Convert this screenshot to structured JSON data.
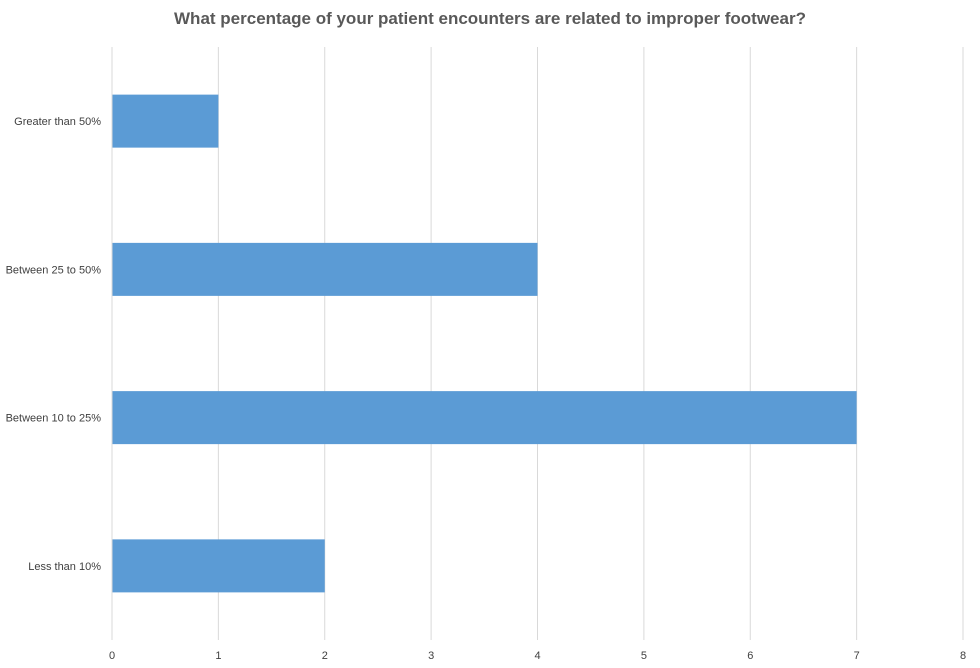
{
  "chart_data": {
    "type": "bar",
    "orientation": "horizontal",
    "title": "What percentage of your patient encounters are related to improper footwear?",
    "categories": [
      "Greater than 50%",
      "Between 25 to 50%",
      "Between 10 to 25%",
      "Less than 10%"
    ],
    "values": [
      1,
      4,
      7,
      2
    ],
    "xlim": [
      0,
      8
    ],
    "x_ticks": [
      "0",
      "1",
      "2",
      "3",
      "4",
      "5",
      "6",
      "7",
      "8"
    ],
    "grid": "vertical",
    "bar_color": "#5B9BD5",
    "grid_color": "#D9D9D9",
    "legend": "none"
  }
}
